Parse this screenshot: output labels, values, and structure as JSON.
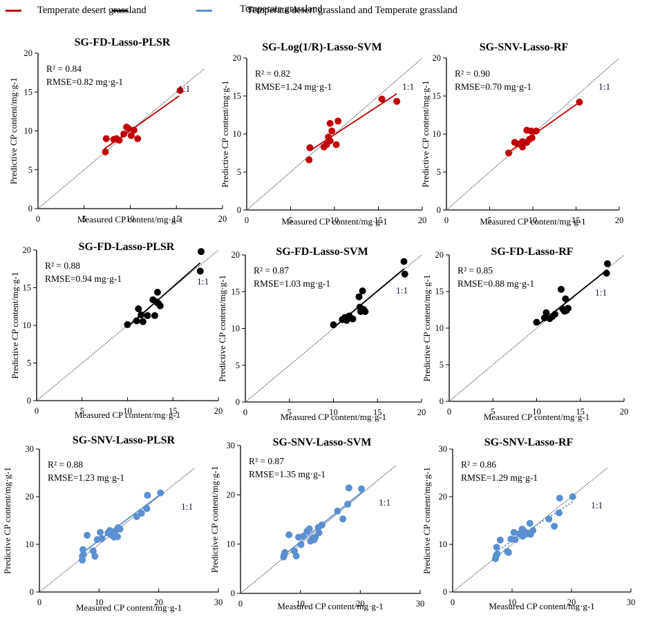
{
  "legend": [
    {
      "label": "Temperate desert grassland",
      "color": "#c00000"
    },
    {
      "label": "Temperate grassland",
      "color": "#000000"
    },
    {
      "label": "Temperate desert grassland and Temperate grassland",
      "color": "#5b8fd0"
    }
  ],
  "chart_data": [
    {
      "type": "scatter",
      "title": "SG-FD-Lasso-PLSR",
      "group": "Temperate desert grassland",
      "xlabel": "Measured CP content/mg·g-1",
      "ylabel": "Predictive CP content/mg·g-1",
      "xlim": [
        0,
        20
      ],
      "ylim": [
        0,
        20
      ],
      "xticks": [
        0,
        5,
        10,
        15,
        20
      ],
      "yticks": [
        0,
        5,
        10,
        15,
        20
      ],
      "r2_label": "R² = 0.84",
      "rmse_label": "RMSE=0.82 mg·g-1",
      "identity_label": "1:1",
      "color": "#c00000",
      "fit_style": "solid",
      "identity_max": 18,
      "fit": {
        "x": [
          7.2,
          15.3
        ],
        "y": [
          7.7,
          14.5
        ]
      },
      "points": [
        [
          7.3,
          7.3
        ],
        [
          7.4,
          9.0
        ],
        [
          8.2,
          8.9
        ],
        [
          8.5,
          9.0
        ],
        [
          8.8,
          8.8
        ],
        [
          9.3,
          9.6
        ],
        [
          9.6,
          10.5
        ],
        [
          9.8,
          10.3
        ],
        [
          10.1,
          9.4
        ],
        [
          10.4,
          10.1
        ],
        [
          10.8,
          9.0
        ],
        [
          15.4,
          15.2
        ]
      ]
    },
    {
      "type": "scatter",
      "title": "SG-Log(1/R)-Lasso-SVM",
      "group": "Temperate desert grassland",
      "xlabel": "Measured CP content/mg·g-1",
      "ylabel": "Predictive CP content/mg·g-1",
      "xlim": [
        0,
        20
      ],
      "ylim": [
        0,
        20
      ],
      "xticks": [
        0,
        5,
        10,
        15,
        20
      ],
      "yticks": [
        0,
        5,
        10,
        15,
        20
      ],
      "r2_label": "R² = 0.82",
      "rmse_label": "RMSE=1.24 mg·g-1",
      "identity_label": "1:1",
      "color": "#c00000",
      "fit_style": "solid",
      "identity_max": 20,
      "fit": {
        "x": [
          7.2,
          17.1
        ],
        "y": [
          7.8,
          15.3
        ]
      },
      "points": [
        [
          7.1,
          6.6
        ],
        [
          7.2,
          8.2
        ],
        [
          8.8,
          8.3
        ],
        [
          9.1,
          8.6
        ],
        [
          9.3,
          9.6
        ],
        [
          9.5,
          9.1
        ],
        [
          9.5,
          11.4
        ],
        [
          9.7,
          10.4
        ],
        [
          10.2,
          8.6
        ],
        [
          10.4,
          11.7
        ],
        [
          15.4,
          14.6
        ],
        [
          17.1,
          14.3
        ]
      ]
    },
    {
      "type": "scatter",
      "title": "SG-SNV-Lasso-RF",
      "group": "Temperate desert grassland",
      "xlabel": "Measured CP content/mg·g-1",
      "ylabel": "Predictive CP content/mg·g-1",
      "xlim": [
        0,
        20
      ],
      "ylim": [
        0,
        20
      ],
      "xticks": [
        0,
        5,
        10,
        15,
        20
      ],
      "yticks": [
        0,
        5,
        10,
        15,
        20
      ],
      "r2_label": "R² = 0.90",
      "rmse_label": "RMSE=0.70 mg·g-1",
      "identity_label": "1:1",
      "color": "#c00000",
      "fit_style": "solid",
      "identity_max": 20,
      "fit": {
        "x": [
          7.2,
          15.3
        ],
        "y": [
          7.6,
          14.1
        ]
      },
      "points": [
        [
          7.2,
          7.5
        ],
        [
          7.9,
          8.9
        ],
        [
          8.2,
          8.7
        ],
        [
          8.8,
          9.0
        ],
        [
          8.8,
          8.3
        ],
        [
          9.3,
          8.9
        ],
        [
          9.3,
          10.5
        ],
        [
          9.6,
          9.3
        ],
        [
          9.8,
          10.4
        ],
        [
          9.9,
          9.5
        ],
        [
          10.4,
          10.4
        ],
        [
          15.4,
          14.2
        ]
      ]
    },
    {
      "type": "scatter",
      "title": "SG-FD-Lasso-PLSR",
      "group": "Temperate grassland",
      "xlabel": "Measured CP content/mg·g-1",
      "ylabel": "Predictive CP content/mg·g-1",
      "xlim": [
        0,
        20
      ],
      "ylim": [
        0,
        20
      ],
      "xticks": [
        0,
        5,
        10,
        15,
        20
      ],
      "yticks": [
        0,
        5,
        10,
        15,
        20
      ],
      "r2_label": "R² = 0.88",
      "rmse_label": "RMSE=0.94 mg·g-1",
      "identity_label": "1:1",
      "color": "#000000",
      "fit_style": "solid",
      "identity_max": 20,
      "fit": {
        "x": [
          10.0,
          18.0
        ],
        "y": [
          9.8,
          18.3
        ]
      },
      "points": [
        [
          10.0,
          10.1
        ],
        [
          11.0,
          10.6
        ],
        [
          11.2,
          12.2
        ],
        [
          11.5,
          11.4
        ],
        [
          11.7,
          10.5
        ],
        [
          12.2,
          11.3
        ],
        [
          12.8,
          13.4
        ],
        [
          13.0,
          11.3
        ],
        [
          13.2,
          13.1
        ],
        [
          13.3,
          14.4
        ],
        [
          13.4,
          12.9
        ],
        [
          13.6,
          12.6
        ],
        [
          18.0,
          17.2
        ],
        [
          18.1,
          19.8
        ]
      ]
    },
    {
      "type": "scatter",
      "title": "SG-FD-Lasso-SVM",
      "group": "Temperate grassland",
      "xlabel": "Measured CP content/mg·g-1",
      "ylabel": "Predictive CP content/mg·g-1",
      "xlim": [
        0,
        20
      ],
      "ylim": [
        0,
        20
      ],
      "xticks": [
        0,
        5,
        10,
        15,
        20
      ],
      "yticks": [
        0,
        5,
        10,
        15,
        20
      ],
      "r2_label": "R² = 0.87",
      "rmse_label": "RMSE=1.03 mg·g-1",
      "identity_label": "1:1",
      "color": "#000000",
      "fit_style": "solid",
      "identity_max": 20,
      "fit": {
        "x": [
          10.2,
          18.0
        ],
        "y": [
          10.3,
          18.1
        ]
      },
      "points": [
        [
          10.0,
          10.5
        ],
        [
          11.0,
          11.2
        ],
        [
          11.3,
          11.5
        ],
        [
          11.5,
          11.1
        ],
        [
          11.8,
          11.7
        ],
        [
          12.2,
          11.3
        ],
        [
          12.9,
          14.3
        ],
        [
          13.0,
          12.9
        ],
        [
          13.1,
          12.3
        ],
        [
          13.3,
          15.1
        ],
        [
          13.4,
          12.6
        ],
        [
          13.6,
          12.3
        ],
        [
          18.0,
          19.1
        ],
        [
          18.1,
          17.4
        ]
      ]
    },
    {
      "type": "scatter",
      "title": "SG-FD-Lasso-RF",
      "group": "Temperate grassland",
      "xlabel": "Measured CP content/mg·g-1",
      "ylabel": "Predictive CP content/mg·g-1",
      "xlim": [
        0,
        20
      ],
      "ylim": [
        0,
        20
      ],
      "xticks": [
        0,
        5,
        10,
        15,
        20
      ],
      "yticks": [
        0,
        5,
        10,
        15,
        20
      ],
      "r2_label": "R² = 0.85",
      "rmse_label": "RMSE=0.88 mg·g-1",
      "identity_label": "1:1",
      "color": "#000000",
      "fit_style": "solid",
      "identity_max": 20,
      "fit": {
        "x": [
          10.2,
          18.0
        ],
        "y": [
          10.5,
          17.9
        ]
      },
      "points": [
        [
          10.0,
          10.8
        ],
        [
          10.9,
          11.4
        ],
        [
          11.1,
          12.1
        ],
        [
          11.5,
          11.3
        ],
        [
          11.8,
          11.6
        ],
        [
          12.1,
          11.9
        ],
        [
          12.8,
          15.3
        ],
        [
          13.0,
          12.6
        ],
        [
          13.2,
          12.3
        ],
        [
          13.3,
          14.0
        ],
        [
          13.4,
          12.4
        ],
        [
          13.6,
          12.7
        ],
        [
          18.0,
          17.5
        ],
        [
          18.1,
          18.8
        ]
      ]
    },
    {
      "type": "scatter",
      "title": "SG-SNV-Lasso-PLSR",
      "group": "Temperate desert grassland and Temperate grassland",
      "xlabel": "Measured CP content/mg·g-1",
      "ylabel": "Predictive CP content/mg·g-1",
      "xlim": [
        0,
        30
      ],
      "ylim": [
        0,
        30
      ],
      "xticks": [
        0,
        10,
        20,
        30
      ],
      "yticks": [
        0,
        10,
        20,
        30
      ],
      "r2_label": "R² = 0.88",
      "rmse_label": "RMSE=1.23 mg·g-1",
      "identity_label": "1:1",
      "color": "#5b8fd0",
      "fit_style": "solid",
      "identity_max": 26,
      "fit": {
        "x": [
          7.3,
          20.3
        ],
        "y": [
          8.3,
          20.5
        ]
      },
      "points": [
        [
          7.2,
          6.7
        ],
        [
          7.2,
          7.5
        ],
        [
          7.3,
          8.9
        ],
        [
          7.4,
          7.9
        ],
        [
          8.0,
          11.9
        ],
        [
          9.0,
          8.6
        ],
        [
          9.3,
          7.5
        ],
        [
          9.7,
          11.0
        ],
        [
          10.2,
          12.5
        ],
        [
          10.5,
          11.2
        ],
        [
          11.5,
          12.4
        ],
        [
          11.8,
          12.9
        ],
        [
          12.0,
          12.0
        ],
        [
          12.3,
          12.5
        ],
        [
          12.5,
          11.5
        ],
        [
          12.8,
          12.9
        ],
        [
          13.1,
          11.6
        ],
        [
          13.2,
          13.5
        ],
        [
          13.5,
          13.2
        ],
        [
          16.3,
          15.8
        ],
        [
          17.1,
          16.5
        ],
        [
          18.0,
          17.5
        ],
        [
          18.1,
          20.3
        ],
        [
          20.3,
          20.8
        ]
      ]
    },
    {
      "type": "scatter",
      "title": "SG-SNV-Lasso-SVM",
      "group": "Temperate desert grassland and Temperate grassland",
      "xlabel": "Measured CP content/mg·g-1",
      "ylabel": "Predictive CP content/mg·g-1",
      "xlim": [
        0,
        30
      ],
      "ylim": [
        0,
        30
      ],
      "xticks": [
        0,
        10,
        20,
        30
      ],
      "yticks": [
        0,
        10,
        20,
        30
      ],
      "r2_label": "R² = 0.87",
      "rmse_label": "RMSE=1.35 mg·g-1",
      "identity_label": "1:1",
      "color": "#5b8fd0",
      "fit_style": "solid",
      "identity_max": 26,
      "fit": {
        "x": [
          7.3,
          20.3
        ],
        "y": [
          7.8,
          20.6
        ]
      },
      "points": [
        [
          7.2,
          7.4
        ],
        [
          7.3,
          7.8
        ],
        [
          7.4,
          8.3
        ],
        [
          8.1,
          11.9
        ],
        [
          9.0,
          8.6
        ],
        [
          9.3,
          7.6
        ],
        [
          9.7,
          11.4
        ],
        [
          10.1,
          9.9
        ],
        [
          10.5,
          11.6
        ],
        [
          11.1,
          12.6
        ],
        [
          11.5,
          13.1
        ],
        [
          11.7,
          10.6
        ],
        [
          12.0,
          11.2
        ],
        [
          12.3,
          10.9
        ],
        [
          12.5,
          11.4
        ],
        [
          13.0,
          13.4
        ],
        [
          13.1,
          12.3
        ],
        [
          13.6,
          13.9
        ],
        [
          16.2,
          16.7
        ],
        [
          17.1,
          15.1
        ],
        [
          17.9,
          18.1
        ],
        [
          18.1,
          21.4
        ],
        [
          20.2,
          21.2
        ]
      ]
    },
    {
      "type": "scatter",
      "title": "SG-SNV-Lasso-RF",
      "group": "Temperate desert grassland and Temperate grassland",
      "xlabel": "Measured CP content/mg·g-1",
      "ylabel": "Predictive CP content/mg·g-1",
      "xlim": [
        0,
        30
      ],
      "ylim": [
        0,
        30
      ],
      "xticks": [
        0,
        10,
        20,
        30
      ],
      "yticks": [
        0,
        10,
        20,
        30
      ],
      "r2_label": "R² = 0.86",
      "rmse_label": "RMSE=1.29 mg·g-1",
      "identity_label": "1:1",
      "color": "#5b8fd0",
      "fit_style": "dotted",
      "identity_max": 26,
      "fit": {
        "x": [
          7.3,
          20.3
        ],
        "y": [
          8.5,
          19.0
        ]
      },
      "points": [
        [
          7.2,
          7.0
        ],
        [
          7.3,
          7.6
        ],
        [
          7.4,
          9.4
        ],
        [
          7.5,
          8.0
        ],
        [
          8.0,
          10.9
        ],
        [
          9.2,
          8.5
        ],
        [
          9.4,
          8.3
        ],
        [
          9.8,
          11.1
        ],
        [
          10.3,
          12.5
        ],
        [
          10.5,
          11.0
        ],
        [
          11.2,
          12.2
        ],
        [
          11.7,
          13.2
        ],
        [
          11.8,
          11.7
        ],
        [
          12.1,
          12.7
        ],
        [
          12.5,
          12.2
        ],
        [
          13.0,
          14.4
        ],
        [
          13.1,
          12.1
        ],
        [
          13.5,
          12.9
        ],
        [
          16.2,
          15.3
        ],
        [
          17.1,
          13.8
        ],
        [
          17.9,
          16.6
        ],
        [
          18.0,
          19.7
        ],
        [
          20.2,
          20.0
        ]
      ]
    }
  ]
}
